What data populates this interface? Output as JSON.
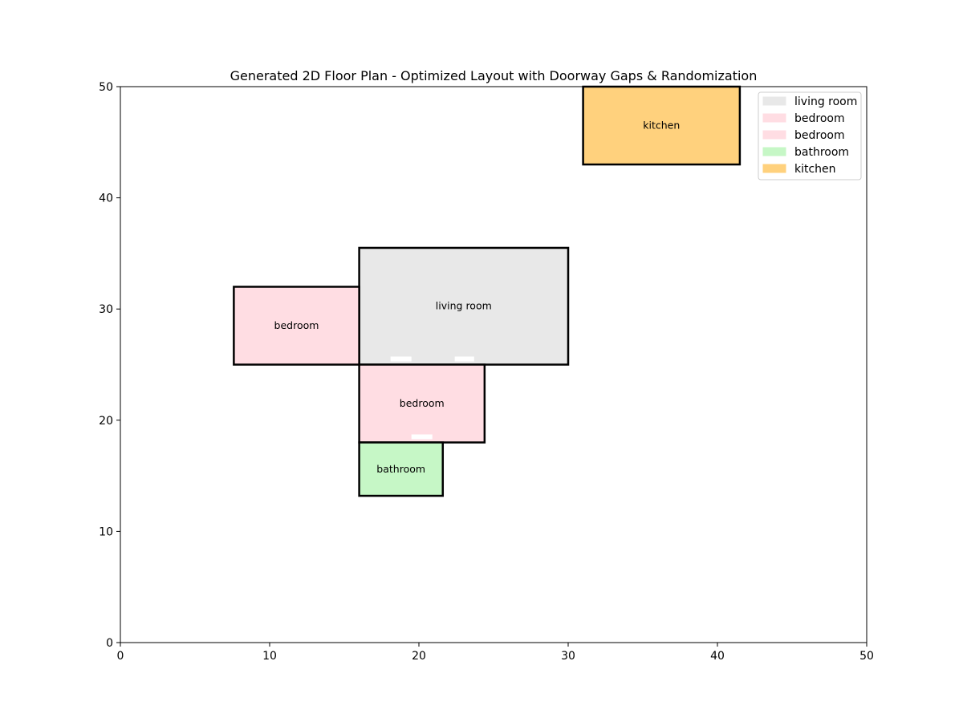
{
  "chart_data": {
    "type": "floor_plan",
    "title": "Generated 2D Floor Plan - Optimized Layout with Doorway Gaps & Randomization",
    "xlabel": "",
    "ylabel": "",
    "xlim": [
      0,
      50
    ],
    "ylim": [
      0,
      50
    ],
    "xticks": [
      "0",
      "10",
      "20",
      "30",
      "40",
      "50"
    ],
    "yticks": [
      "0",
      "10",
      "20",
      "30",
      "40",
      "50"
    ],
    "grid": false,
    "legend_position": "top-right",
    "rooms": [
      {
        "name": "living room",
        "x": 16,
        "y": 25,
        "width": 14,
        "height": 10.5,
        "color": "#e8e8e8"
      },
      {
        "name": "bedroom",
        "x": 7.6,
        "y": 25,
        "width": 8.4,
        "height": 7,
        "color": "#ffdde3"
      },
      {
        "name": "bedroom",
        "x": 16,
        "y": 18,
        "width": 8.4,
        "height": 7,
        "color": "#ffdde3"
      },
      {
        "name": "bathroom",
        "x": 16,
        "y": 13.2,
        "width": 5.6,
        "height": 4.8,
        "color": "#c6f7c6"
      },
      {
        "name": "kitchen",
        "x": 31,
        "y": 43,
        "width": 10.5,
        "height": 7,
        "color": "#ffd17d"
      }
    ],
    "doorways": [
      {
        "x": 18.1,
        "y": 25,
        "width": 1.4
      },
      {
        "x": 22.4,
        "y": 25,
        "width": 1.3
      },
      {
        "x": 19.5,
        "y": 18,
        "width": 1.4
      }
    ],
    "legend": [
      {
        "label": "living room",
        "color": "#e8e8e8"
      },
      {
        "label": "bedroom",
        "color": "#ffdde3"
      },
      {
        "label": "bedroom",
        "color": "#ffdde3"
      },
      {
        "label": "bathroom",
        "color": "#c6f7c6"
      },
      {
        "label": "kitchen",
        "color": "#ffd17d"
      }
    ]
  }
}
